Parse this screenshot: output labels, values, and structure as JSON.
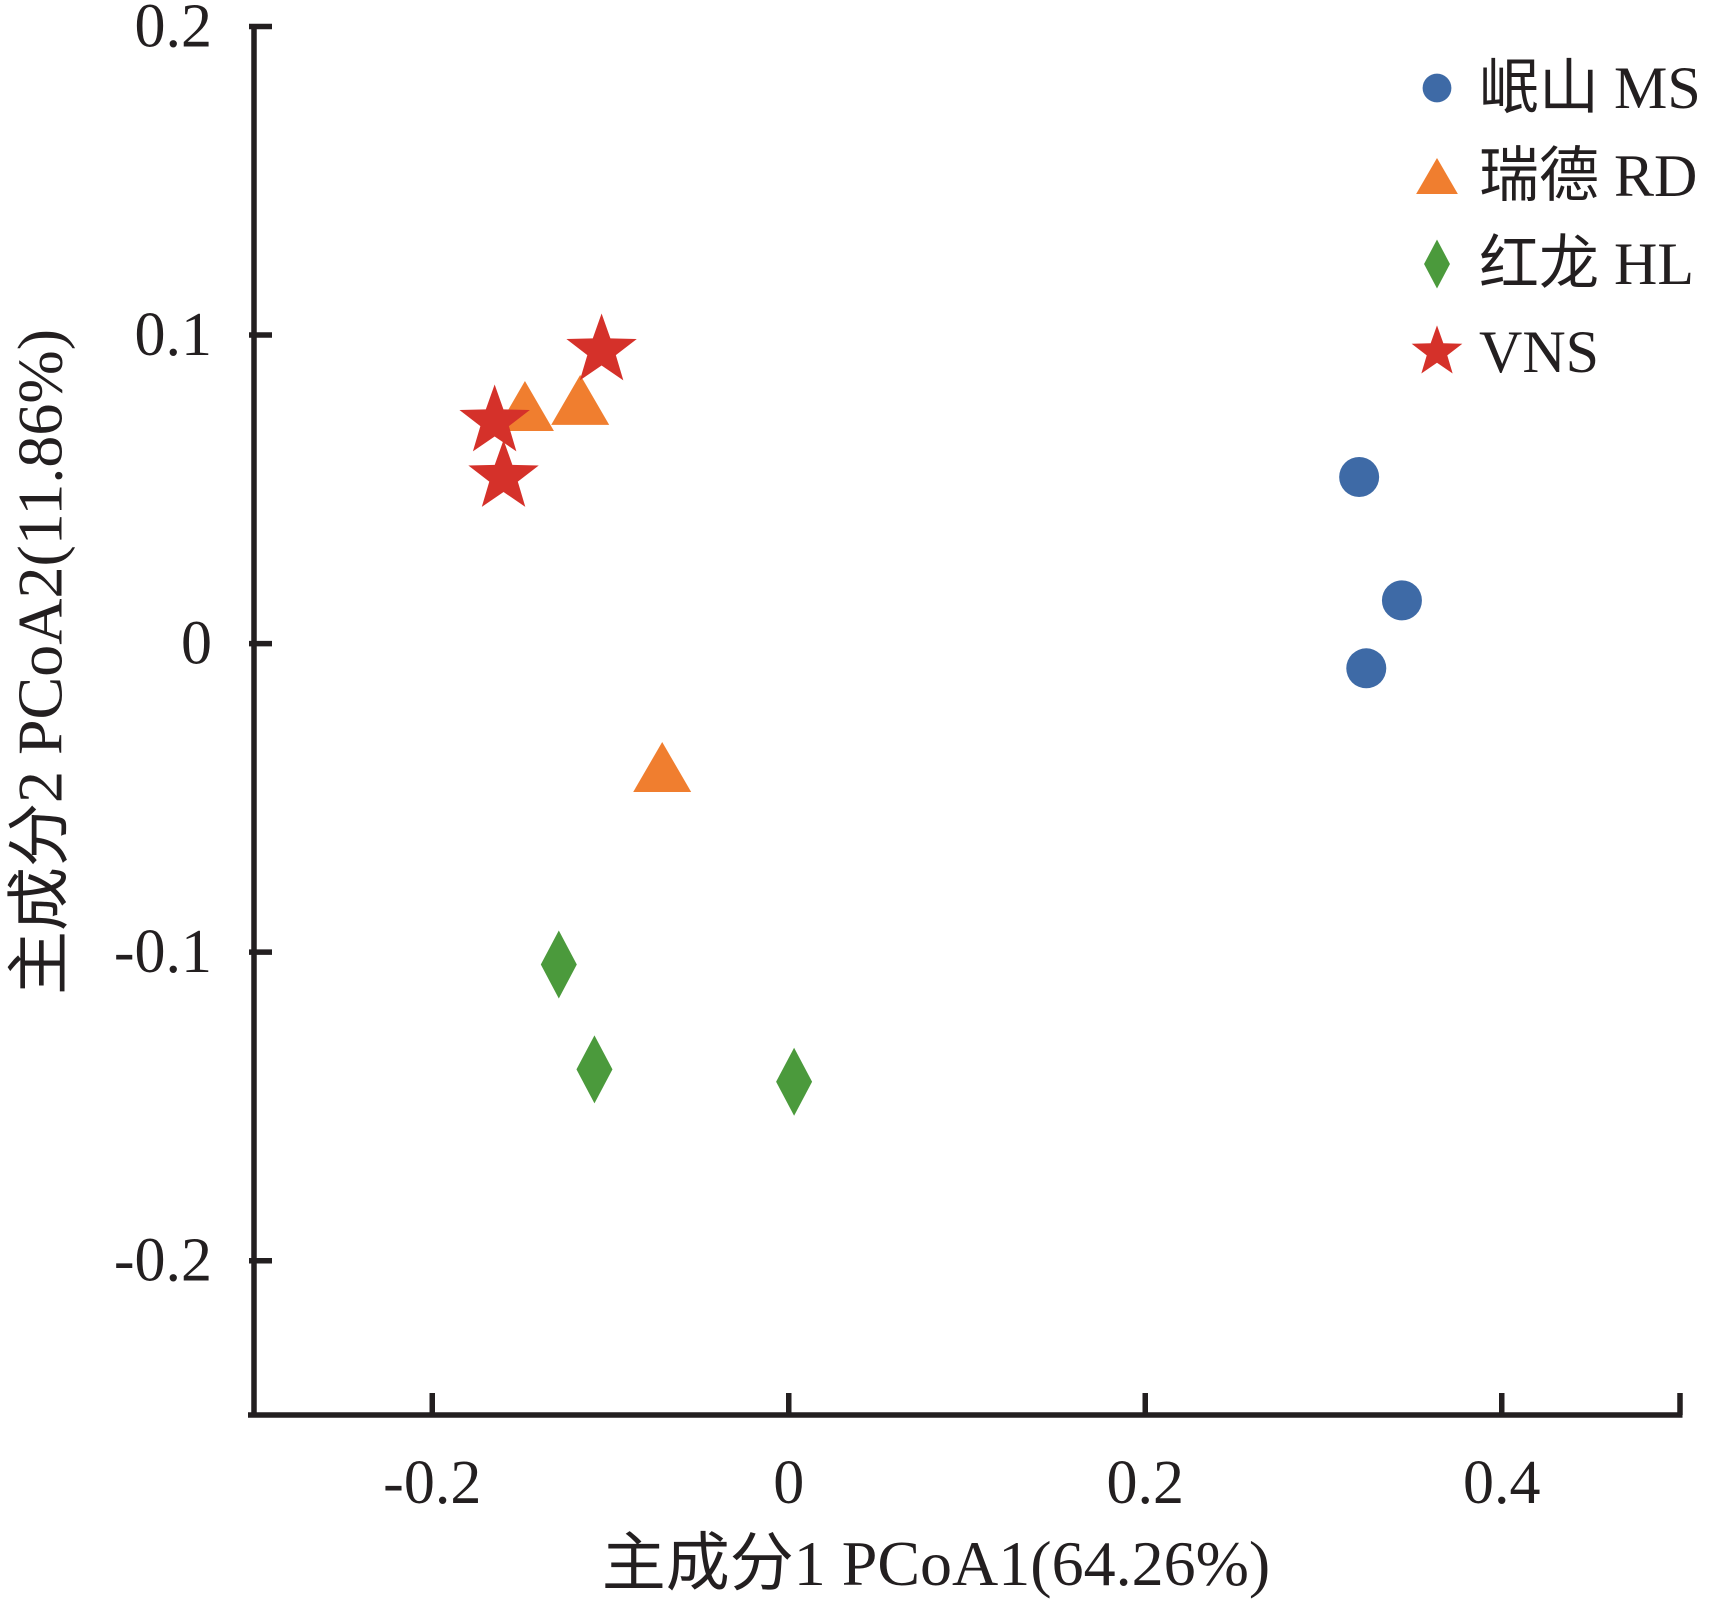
{
  "chart_data": {
    "type": "scatter",
    "xlabel": "主成分1 PCoA1(64.26%)",
    "ylabel": "主成分2 PCoA2(11.86%)",
    "xlim": [
      -0.3,
      0.5
    ],
    "ylim": [
      -0.25,
      0.2
    ],
    "xticks": [
      -0.2,
      0,
      0.2,
      0.4
    ],
    "xtick_labels": [
      "-0.2",
      "0",
      "0.2",
      "0.4"
    ],
    "yticks": [
      0.2,
      0.1,
      0,
      -0.1,
      -0.2
    ],
    "ytick_labels": [
      "0.2",
      "0.1",
      "0",
      "-0.1",
      "-0.2"
    ],
    "grid": false,
    "legend_position": "top-right",
    "series": [
      {
        "name": "岷山 MS",
        "marker": "circle",
        "color": "#3e6aa6",
        "points": [
          [
            0.32,
            0.054
          ],
          [
            0.344,
            0.014
          ],
          [
            0.324,
            -0.008
          ]
        ]
      },
      {
        "name": "瑞德 RD",
        "marker": "triangle",
        "color": "#f07e2f",
        "points": [
          [
            -0.148,
            0.077
          ],
          [
            -0.117,
            0.079
          ],
          [
            -0.071,
            -0.04
          ]
        ]
      },
      {
        "name": "红龙 HL",
        "marker": "diamond",
        "color": "#4b9a3c",
        "points": [
          [
            -0.129,
            -0.104
          ],
          [
            -0.109,
            -0.138
          ],
          [
            0.003,
            -0.142
          ]
        ]
      },
      {
        "name": "VNS",
        "marker": "star",
        "color": "#d5312a",
        "points": [
          [
            -0.105,
            0.095
          ],
          [
            -0.165,
            0.072
          ],
          [
            -0.16,
            0.054
          ]
        ]
      }
    ]
  }
}
